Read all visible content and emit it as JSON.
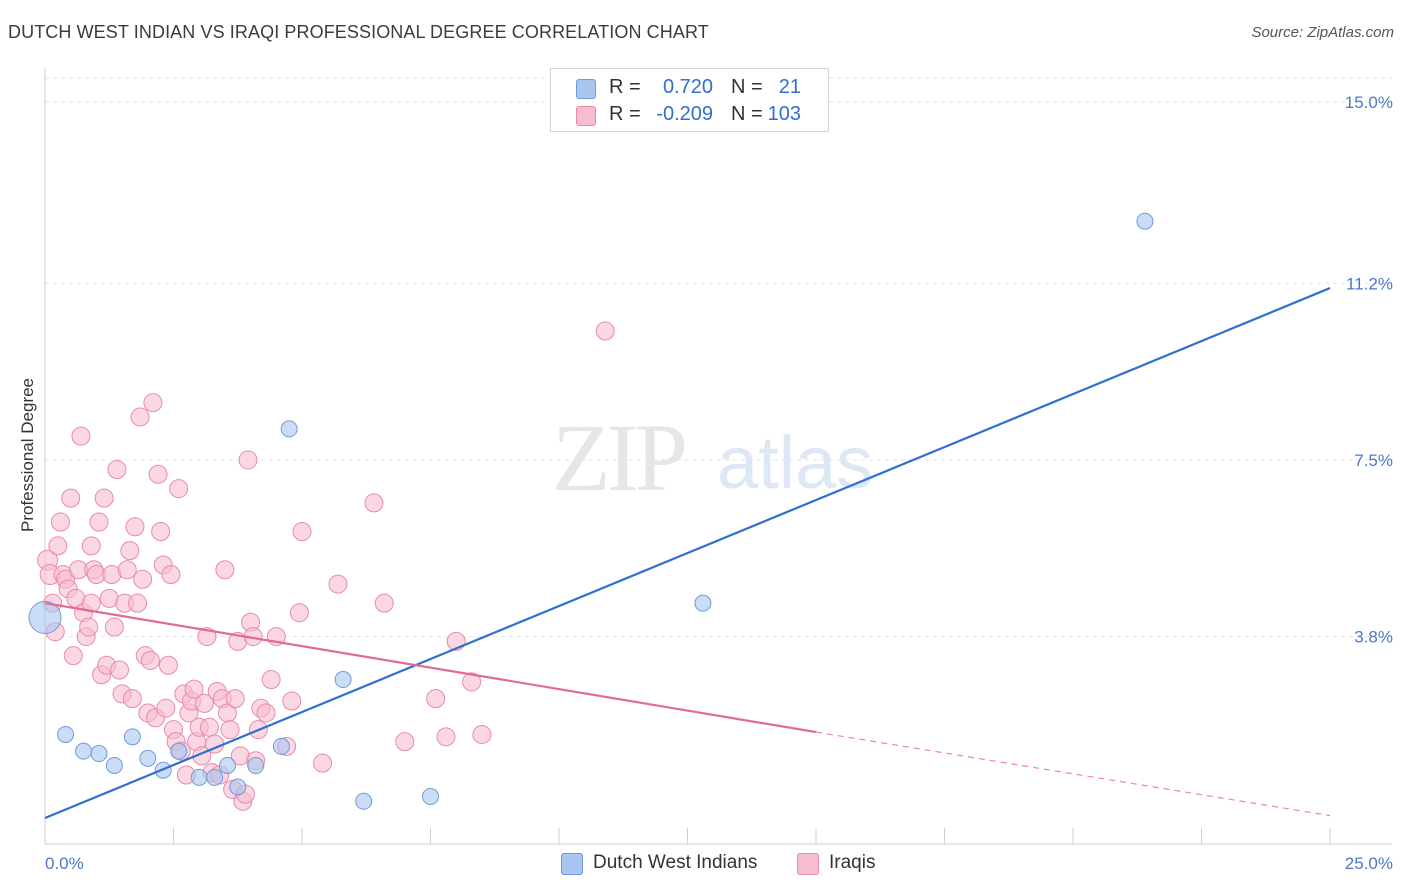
{
  "title": "DUTCH WEST INDIAN VS IRAQI PROFESSIONAL DEGREE CORRELATION CHART",
  "source": "Source: ZipAtlas.com",
  "watermark": {
    "zip": "ZIP",
    "atlas": "atlas"
  },
  "legend": {
    "r_label": "R =",
    "n_label": "N =",
    "rows": [
      {
        "r": "0.720",
        "n": "21",
        "color": "#a9c6f0",
        "border": "#6f9bd8"
      },
      {
        "r": "-0.209",
        "n": "103",
        "color": "#f6bcd0",
        "border": "#e98aab"
      }
    ]
  },
  "chart_data": {
    "type": "scatter",
    "title": "DUTCH WEST INDIAN VS IRAQI PROFESSIONAL DEGREE CORRELATION CHART",
    "xlabel": "",
    "ylabel": "Professional Degree",
    "xlim": [
      0,
      25
    ],
    "ylim": [
      0,
      15.5
    ],
    "x_tick_labels": {
      "min": "0.0%",
      "max": "25.0%"
    },
    "y_ticks": [
      {
        "value": 3.8,
        "label": "3.8%"
      },
      {
        "value": 7.5,
        "label": "7.5%"
      },
      {
        "value": 11.2,
        "label": "11.2%"
      },
      {
        "value": 15.0,
        "label": "15.0%"
      }
    ],
    "series": [
      {
        "name": "Dutch West Indians",
        "color": "#a9c6f0",
        "stroke": "#6f9bd8",
        "line_color": "#2e6fd0",
        "trend": {
          "x0": 0,
          "y0": 0.0,
          "x1": 25,
          "y1": 11.1
        },
        "points": [
          [
            0,
            4.2,
            16
          ],
          [
            0.4,
            1.75,
            8
          ],
          [
            0.75,
            1.4,
            8
          ],
          [
            1.05,
            1.35,
            8
          ],
          [
            1.35,
            1.1,
            8
          ],
          [
            1.7,
            1.7,
            8
          ],
          [
            2.0,
            1.25,
            8
          ],
          [
            2.3,
            1.0,
            8
          ],
          [
            2.6,
            1.4,
            8
          ],
          [
            3.0,
            0.85,
            8
          ],
          [
            3.3,
            0.85,
            8
          ],
          [
            3.55,
            1.1,
            8
          ],
          [
            3.75,
            0.65,
            8
          ],
          [
            4.1,
            1.1,
            8
          ],
          [
            4.6,
            1.5,
            8
          ],
          [
            4.75,
            8.15,
            8
          ],
          [
            5.8,
            2.9,
            8
          ],
          [
            6.2,
            0.35,
            8
          ],
          [
            7.5,
            0.45,
            8
          ],
          [
            12.8,
            4.5,
            8
          ],
          [
            21.4,
            12.5,
            8
          ]
        ]
      },
      {
        "name": "Iraqis",
        "color": "#f6bcd0",
        "stroke": "#e98aab",
        "line_color": "#e26a93",
        "trend": {
          "x0": 0,
          "y0": 4.5,
          "x1": 15,
          "y1": 1.8,
          "dash_x1": 25,
          "dash_y1": 0.05
        },
        "points": [
          [
            0.05,
            5.4,
            10
          ],
          [
            0.1,
            5.1,
            10
          ],
          [
            0.15,
            4.5,
            9
          ],
          [
            0.2,
            3.9,
            9
          ],
          [
            0.25,
            5.7,
            9
          ],
          [
            0.3,
            6.2,
            9
          ],
          [
            0.35,
            5.1,
            9
          ],
          [
            0.4,
            5.0,
            9
          ],
          [
            0.45,
            4.8,
            9
          ],
          [
            0.5,
            6.7,
            9
          ],
          [
            0.55,
            3.4,
            9
          ],
          [
            0.6,
            4.6,
            9
          ],
          [
            0.65,
            5.2,
            9
          ],
          [
            0.7,
            8.0,
            9
          ],
          [
            0.75,
            4.3,
            9
          ],
          [
            0.8,
            3.8,
            9
          ],
          [
            0.85,
            4.0,
            9
          ],
          [
            0.9,
            4.5,
            9
          ],
          [
            0.95,
            5.2,
            9
          ],
          [
            1.0,
            5.1,
            9
          ],
          [
            1.05,
            6.2,
            9
          ],
          [
            1.1,
            3.0,
            9
          ],
          [
            1.15,
            6.7,
            9
          ],
          [
            1.2,
            3.2,
            9
          ],
          [
            1.25,
            4.6,
            9
          ],
          [
            1.3,
            5.1,
            9
          ],
          [
            1.35,
            4.0,
            9
          ],
          [
            1.4,
            7.3,
            9
          ],
          [
            1.45,
            3.1,
            9
          ],
          [
            1.5,
            2.6,
            9
          ],
          [
            1.55,
            4.5,
            9
          ],
          [
            1.6,
            5.2,
            9
          ],
          [
            1.65,
            5.6,
            9
          ],
          [
            1.7,
            2.5,
            9
          ],
          [
            1.75,
            6.1,
            9
          ],
          [
            1.8,
            4.5,
            9
          ],
          [
            1.85,
            8.4,
            9
          ],
          [
            1.9,
            5.0,
            9
          ],
          [
            1.95,
            3.4,
            9
          ],
          [
            2.0,
            2.2,
            9
          ],
          [
            2.05,
            3.3,
            9
          ],
          [
            2.1,
            8.7,
            9
          ],
          [
            2.15,
            2.1,
            9
          ],
          [
            2.2,
            7.2,
            9
          ],
          [
            2.25,
            6.0,
            9
          ],
          [
            2.3,
            5.3,
            9
          ],
          [
            2.35,
            2.3,
            9
          ],
          [
            2.4,
            3.2,
            9
          ],
          [
            2.45,
            5.1,
            9
          ],
          [
            2.5,
            1.85,
            9
          ],
          [
            2.55,
            1.6,
            9
          ],
          [
            2.6,
            6.9,
            9
          ],
          [
            2.65,
            1.4,
            9
          ],
          [
            2.7,
            2.6,
            9
          ],
          [
            2.75,
            0.9,
            9
          ],
          [
            2.8,
            2.2,
            9
          ],
          [
            2.85,
            2.45,
            9
          ],
          [
            2.9,
            2.7,
            9
          ],
          [
            2.95,
            1.6,
            9
          ],
          [
            3.0,
            1.9,
            9
          ],
          [
            3.05,
            1.3,
            9
          ],
          [
            3.1,
            2.4,
            9
          ],
          [
            3.15,
            3.8,
            9
          ],
          [
            3.2,
            1.9,
            9
          ],
          [
            3.25,
            0.95,
            9
          ],
          [
            3.3,
            1.55,
            9
          ],
          [
            3.35,
            2.65,
            9
          ],
          [
            3.4,
            0.9,
            9
          ],
          [
            3.45,
            2.5,
            9
          ],
          [
            3.5,
            5.2,
            9
          ],
          [
            3.55,
            2.2,
            9
          ],
          [
            3.6,
            1.85,
            9
          ],
          [
            3.65,
            0.6,
            9
          ],
          [
            3.7,
            2.5,
            9
          ],
          [
            3.75,
            3.7,
            9
          ],
          [
            3.8,
            1.3,
            9
          ],
          [
            3.85,
            0.35,
            9
          ],
          [
            3.9,
            0.5,
            9
          ],
          [
            3.95,
            7.5,
            9
          ],
          [
            4.0,
            4.1,
            9
          ],
          [
            4.05,
            3.8,
            9
          ],
          [
            4.1,
            1.2,
            9
          ],
          [
            4.15,
            1.85,
            9
          ],
          [
            4.2,
            2.3,
            9
          ],
          [
            4.3,
            2.2,
            9
          ],
          [
            4.4,
            2.9,
            9
          ],
          [
            4.5,
            3.8,
            9
          ],
          [
            4.7,
            1.5,
            9
          ],
          [
            4.8,
            2.45,
            9
          ],
          [
            4.95,
            4.3,
            9
          ],
          [
            5.0,
            6.0,
            9
          ],
          [
            5.4,
            1.15,
            9
          ],
          [
            5.7,
            4.9,
            9
          ],
          [
            6.4,
            6.6,
            9
          ],
          [
            6.6,
            4.5,
            9
          ],
          [
            7.0,
            1.6,
            9
          ],
          [
            7.6,
            2.5,
            9
          ],
          [
            7.8,
            1.7,
            9
          ],
          [
            8.0,
            3.7,
            9
          ],
          [
            8.3,
            2.85,
            9
          ],
          [
            8.5,
            1.75,
            9
          ],
          [
            10.9,
            10.2,
            9
          ],
          [
            0.9,
            5.7,
            9
          ]
        ]
      }
    ]
  }
}
